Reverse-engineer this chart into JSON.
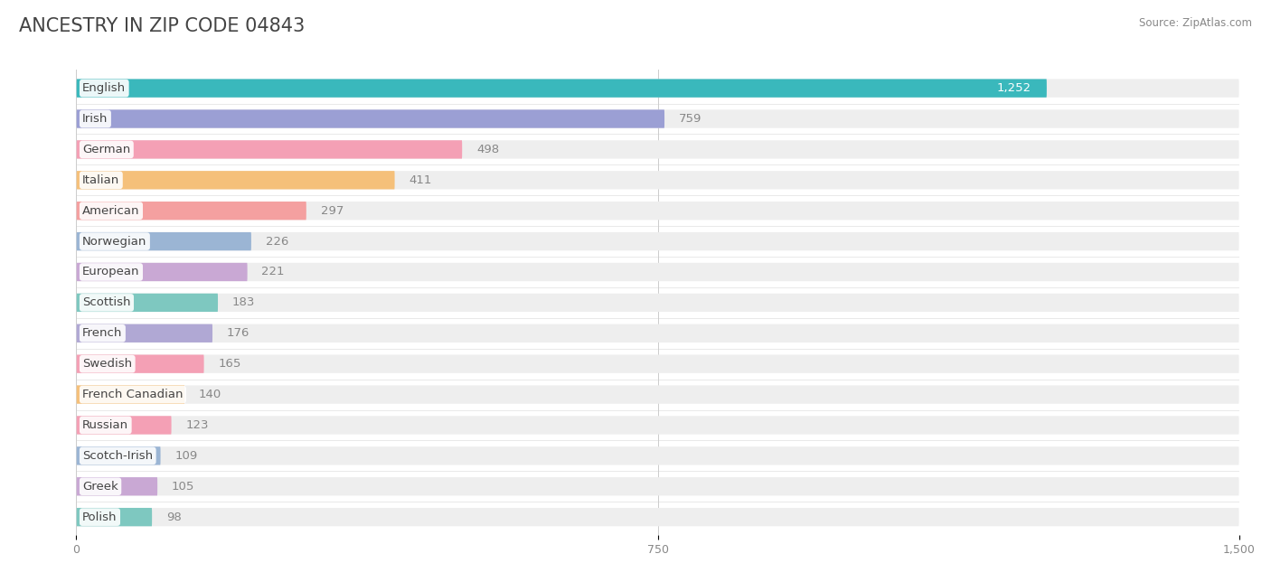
{
  "title": "ANCESTRY IN ZIP CODE 04843",
  "source": "Source: ZipAtlas.com",
  "categories": [
    "English",
    "Irish",
    "German",
    "Italian",
    "American",
    "Norwegian",
    "European",
    "Scottish",
    "French",
    "Swedish",
    "French Canadian",
    "Russian",
    "Scotch-Irish",
    "Greek",
    "Polish"
  ],
  "values": [
    1252,
    759,
    498,
    411,
    297,
    226,
    221,
    183,
    176,
    165,
    140,
    123,
    109,
    105,
    98
  ],
  "bar_colors": [
    "#3ab8bc",
    "#9b9fd4",
    "#f4a0b5",
    "#f5c07a",
    "#f4a0a0",
    "#9bb5d4",
    "#c9a8d4",
    "#7ec8c0",
    "#b0a8d4",
    "#f4a0b5",
    "#f5c07a",
    "#f4a0b5",
    "#9bb5d4",
    "#c9a8d4",
    "#7ec8c0"
  ],
  "bg_bar_color": "#eeeeee",
  "xlim": [
    0,
    1500
  ],
  "xticks": [
    0,
    750,
    1500
  ],
  "title_fontsize": 15,
  "label_fontsize": 9.5,
  "value_fontsize": 9.5,
  "background_color": "#ffffff"
}
